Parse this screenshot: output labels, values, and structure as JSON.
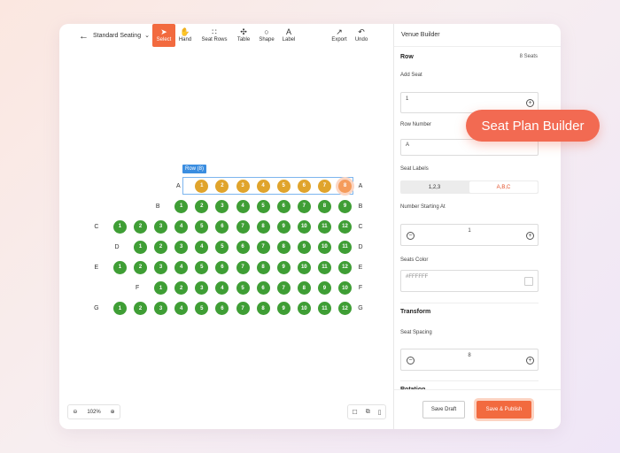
{
  "toolbar": {
    "layout_name": "Standard Seating",
    "tools": [
      {
        "label": "Select",
        "icon": "cursor-icon"
      },
      {
        "label": "Hand",
        "icon": "hand-icon"
      },
      {
        "label": "Seat Rows",
        "icon": "grid-icon"
      },
      {
        "label": "Table",
        "icon": "table-icon"
      },
      {
        "label": "Shape",
        "icon": "shape-icon"
      },
      {
        "label": "Label",
        "icon": "label-icon"
      }
    ],
    "export_label": "Export",
    "undo_label": "Undo",
    "label_glyph": "A"
  },
  "canvas": {
    "selected_row_tag": "Row (8)",
    "rows": [
      {
        "name": "A",
        "seats": [
          "1",
          "2",
          "3",
          "4",
          "5",
          "6",
          "7",
          "8"
        ]
      },
      {
        "name": "B",
        "seats": [
          "1",
          "2",
          "3",
          "4",
          "5",
          "6",
          "7",
          "8",
          "9"
        ]
      },
      {
        "name": "C",
        "seats": [
          "1",
          "2",
          "3",
          "4",
          "5",
          "6",
          "7",
          "8",
          "9",
          "10",
          "11",
          "12"
        ]
      },
      {
        "name": "D",
        "seats": [
          "1",
          "2",
          "3",
          "4",
          "5",
          "6",
          "7",
          "8",
          "9",
          "10",
          "11"
        ]
      },
      {
        "name": "E",
        "seats": [
          "1",
          "2",
          "3",
          "4",
          "5",
          "6",
          "7",
          "8",
          "9",
          "10",
          "11",
          "12"
        ]
      },
      {
        "name": "F",
        "seats": [
          "1",
          "2",
          "3",
          "4",
          "5",
          "6",
          "7",
          "8",
          "9",
          "10"
        ]
      },
      {
        "name": "G",
        "seats": [
          "1",
          "2",
          "3",
          "4",
          "5",
          "6",
          "7",
          "8",
          "9",
          "10",
          "11",
          "12"
        ]
      }
    ],
    "zoom": "102%"
  },
  "panel": {
    "header": "Venue Builder",
    "section_row": "Row",
    "seat_count": "8 Seats",
    "add_seat_label": "Add Seat",
    "add_seat_value": "1",
    "row_number_label": "Row Number",
    "row_number_value": "A",
    "seat_labels_label": "Seat Labels",
    "seat_labels_options": [
      "1,2,3",
      "A,B,C"
    ],
    "number_start_label": "Number Starting At",
    "number_start_value": "1",
    "seats_color_label": "Seats Color",
    "seats_color_value": "#FFFFFF",
    "section_transform": "Transform",
    "seat_spacing_label": "Seat Spacing",
    "seat_spacing_value": "8",
    "cut_title": "Rotation",
    "save_draft": "Save Draft",
    "save_publish": "Save & Publish"
  },
  "badge": "Seat Plan Builder",
  "colors": {
    "accent": "#f26a3f",
    "seat_green": "#3f9e35",
    "seat_selected": "#e0a42c",
    "selection_blue": "#3a8de0"
  }
}
